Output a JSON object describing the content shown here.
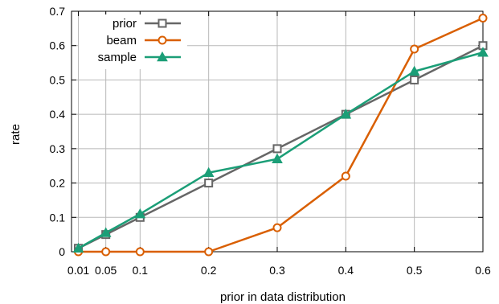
{
  "chart_data": {
    "type": "line",
    "title": "",
    "xlabel": "prior in data distribution",
    "ylabel": "rate",
    "xlim": [
      0,
      0.6
    ],
    "ylim": [
      0,
      0.7
    ],
    "x": [
      0.01,
      0.05,
      0.1,
      0.2,
      0.3,
      0.4,
      0.5,
      0.6
    ],
    "x_tick_labels": [
      "0.01",
      "0.05",
      "0.1",
      "0.2",
      "0.3",
      "0.4",
      "0.5",
      "0.6"
    ],
    "y_ticks": [
      0,
      0.1,
      0.2,
      0.3,
      0.4,
      0.5,
      0.6,
      0.7
    ],
    "y_tick_labels": [
      "0",
      "0.1",
      "0.2",
      "0.3",
      "0.4",
      "0.5",
      "0.6",
      "0.7"
    ],
    "grid": true,
    "legend_position": "top-left",
    "series": [
      {
        "name": "prior",
        "color": "#666666",
        "marker": "open-square",
        "values": [
          0.01,
          0.05,
          0.1,
          0.2,
          0.3,
          0.4,
          0.5,
          0.6
        ]
      },
      {
        "name": "beam",
        "color": "#d95f02",
        "marker": "open-circle",
        "values": [
          0.0,
          0.0,
          0.0,
          0.0,
          0.07,
          0.22,
          0.59,
          0.68
        ]
      },
      {
        "name": "sample",
        "color": "#1b9e77",
        "marker": "filled-triangle",
        "values": [
          0.01,
          0.055,
          0.11,
          0.23,
          0.27,
          0.4,
          0.525,
          0.58
        ]
      }
    ]
  }
}
